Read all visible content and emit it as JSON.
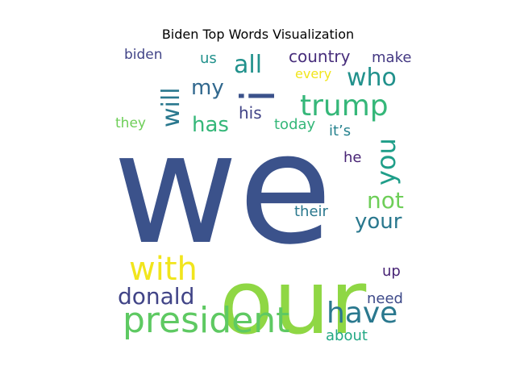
{
  "chart_data": {
    "type": "wordcloud",
    "title": "Biden Top Words Visualization",
    "words": [
      {
        "text": "we",
        "color": "#3b528b"
      },
      {
        "text": "our",
        "color": "#8fd744"
      },
      {
        "text": "president",
        "color": "#5ec962"
      },
      {
        "text": "with",
        "color": "#f1e51d"
      },
      {
        "text": "trump",
        "color": "#35b779"
      },
      {
        "text": "have",
        "color": "#2a788e"
      },
      {
        "text": "i",
        "color": "#3b528b"
      },
      {
        "text": "who",
        "color": "#21918c"
      },
      {
        "text": "you",
        "color": "#1f9e89"
      },
      {
        "text": "donald",
        "color": "#414487"
      },
      {
        "text": "not",
        "color": "#6ece58"
      },
      {
        "text": "your",
        "color": "#2a788e"
      },
      {
        "text": "all",
        "color": "#21918c"
      },
      {
        "text": "will",
        "color": "#2a788e"
      },
      {
        "text": "has",
        "color": "#35b779"
      },
      {
        "text": "my",
        "color": "#31688e"
      },
      {
        "text": "country",
        "color": "#472d7b"
      },
      {
        "text": "his",
        "color": "#414487"
      },
      {
        "text": "today",
        "color": "#35b779"
      },
      {
        "text": "their",
        "color": "#2a788e"
      },
      {
        "text": "make",
        "color": "#443983"
      },
      {
        "text": "biden",
        "color": "#414487"
      },
      {
        "text": "us",
        "color": "#21918c"
      },
      {
        "text": "every",
        "color": "#f1e51d"
      },
      {
        "text": "they",
        "color": "#6ece58"
      },
      {
        "text": "it’s",
        "color": "#26828e"
      },
      {
        "text": "he",
        "color": "#482475"
      },
      {
        "text": "up",
        "color": "#482475"
      },
      {
        "text": "need",
        "color": "#3e4a89"
      },
      {
        "text": "about",
        "color": "#22a884"
      }
    ]
  }
}
